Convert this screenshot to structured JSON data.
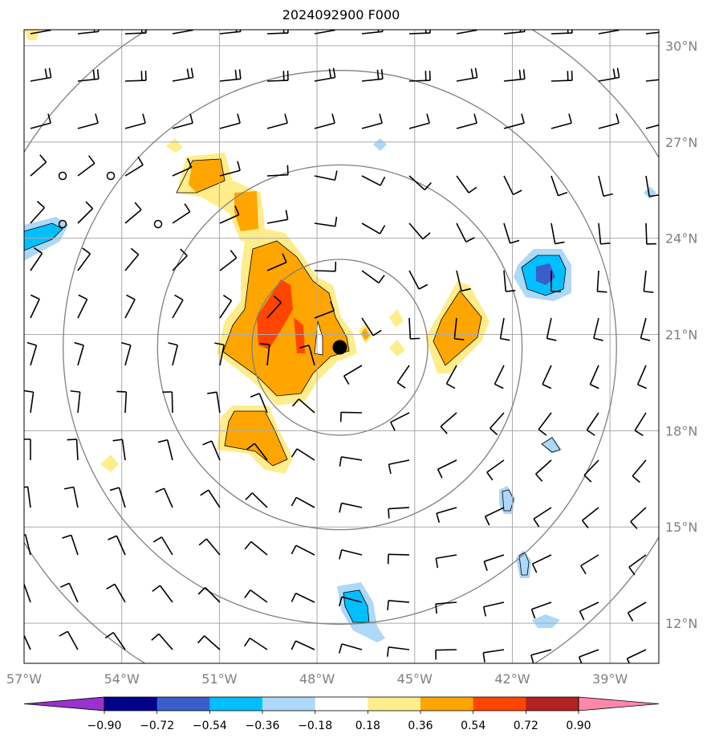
{
  "title": "2024092900 F000",
  "map": {
    "lon_range": [
      -57.0,
      -37.5
    ],
    "lat_range": [
      10.75,
      30.5
    ],
    "lon_ticks": [
      {
        "value": -57,
        "label": "57°W"
      },
      {
        "value": -54,
        "label": "54°W"
      },
      {
        "value": -51,
        "label": "51°W"
      },
      {
        "value": -48,
        "label": "48°W"
      },
      {
        "value": -45,
        "label": "45°W"
      },
      {
        "value": -42,
        "label": "42°W"
      },
      {
        "value": -39,
        "label": "39°W"
      }
    ],
    "lat_ticks": [
      {
        "value": 30,
        "label": "30°N"
      },
      {
        "value": 27,
        "label": "27°N"
      },
      {
        "value": 24,
        "label": "24°N"
      },
      {
        "value": 21,
        "label": "21°N"
      },
      {
        "value": 18,
        "label": "18°N"
      },
      {
        "value": 15,
        "label": "15°N"
      },
      {
        "value": 12,
        "label": "12°N"
      }
    ],
    "storm_center": {
      "lon": -47.3,
      "lat": 20.6
    },
    "range_rings_deg": [
      2.7,
      5.6,
      8.5,
      11.4
    ]
  },
  "colorbar": {
    "labels": [
      "−0.90",
      "−0.72",
      "−0.54",
      "−0.36",
      "−0.18",
      "0.18",
      "0.36",
      "0.54",
      "0.72",
      "0.90"
    ],
    "colors": [
      "#9933cc",
      "#00008b",
      "#3a5fcd",
      "#00bfff",
      "#add8f7",
      "#ffffff",
      "#ffec8b",
      "#ffa500",
      "#ff4500",
      "#b22222",
      "#ff88aa"
    ]
  }
}
